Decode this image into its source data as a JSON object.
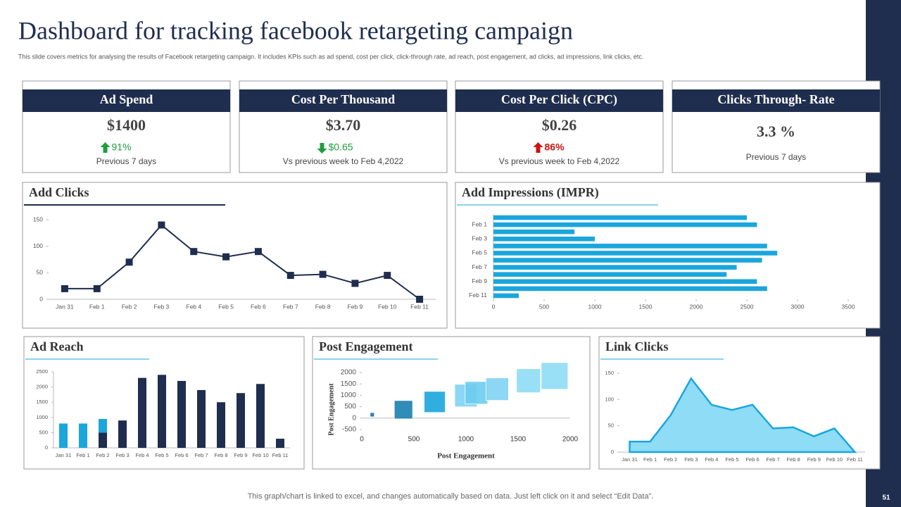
{
  "title": "Dashboard for tracking facebook retargeting campaign",
  "subtitle": "This slide covers metrics for analysing the results of Facebook retargeting campaign. It includes KPIs such as ad spend, cost per click, click-through rate, ad reach, post engagement, ad clicks, ad impressions, link clicks, etc.",
  "kpis": [
    {
      "label": "Ad Spend",
      "value": "$1400",
      "change": "91%",
      "trend": "up",
      "change_color": "#1e9e3e",
      "note": "Previous  7 days"
    },
    {
      "label": "Cost Per Thousand",
      "value": "$3.70",
      "change": "$0.65",
      "trend": "down",
      "change_color": "#1e9e3e",
      "note": "Vs previous  week to Feb 4,2022"
    },
    {
      "label": "Cost Per Click (CPC)",
      "value": "$0.26",
      "change": "86%",
      "trend": "up",
      "change_color": "#d01010",
      "note": "Vs previous  week to Feb 4,2022"
    },
    {
      "label": "Clicks Through- Rate",
      "value": "3.3 %",
      "note": "Previous 7 days"
    }
  ],
  "chart_data": [
    {
      "type": "line",
      "title": "Add Clicks",
      "categories": [
        "Jan 31",
        "Feb 1",
        "Feb 2",
        "Feb 3",
        "Feb 4",
        "Feb 5",
        "Feb 6",
        "Feb 7",
        "Feb 8",
        "Feb 9",
        "Feb 10",
        "Feb 11"
      ],
      "values": [
        20,
        20,
        70,
        140,
        90,
        80,
        90,
        45,
        47,
        30,
        45,
        0
      ],
      "color": "#1f2d4e",
      "ylim": [
        0,
        150
      ],
      "yticks": [
        0,
        50,
        100,
        150
      ]
    },
    {
      "type": "hbar",
      "title": "Add Impressions (IMPR)",
      "categories": [
        null,
        "Feb 1",
        null,
        "Feb 3",
        null,
        "Feb 5",
        null,
        "Feb 7",
        null,
        "Feb 9",
        null,
        "Feb 11"
      ],
      "values": [
        2500,
        2600,
        800,
        1000,
        2700,
        2800,
        2650,
        2400,
        2300,
        2600,
        2700,
        250
      ],
      "color": "#1aa6dc",
      "xlim": [
        0,
        3500
      ],
      "xticks": [
        0,
        500,
        1000,
        1500,
        2000,
        2500,
        3000,
        3500
      ]
    },
    {
      "type": "stacked_bar",
      "title": "Ad Reach",
      "categories": [
        "Jan 31",
        "Feb 1",
        "Feb 2",
        "Feb 3",
        "Feb 4",
        "Feb 5",
        "Feb 6",
        "Feb 7",
        "Feb 8",
        "Feb 9",
        "Feb 10",
        "Feb 11"
      ],
      "series": [
        {
          "color": "#1f2d4e",
          "values": [
            0,
            0,
            500,
            900,
            2300,
            2400,
            2200,
            1900,
            1500,
            1800,
            2100,
            300
          ]
        },
        {
          "color": "#1aa6dc",
          "values": [
            800,
            800,
            450,
            0,
            0,
            0,
            0,
            0,
            0,
            0,
            0,
            0
          ]
        }
      ],
      "ylim": [
        0,
        2500
      ],
      "yticks": [
        0,
        500,
        1000,
        1500,
        2000,
        2500
      ]
    },
    {
      "type": "bubble",
      "title": "Post Engagement",
      "xlabel": "Post Engagement",
      "ylabel": "Post Engagement",
      "x": [
        100,
        400,
        700,
        1000,
        1100,
        1300,
        1600,
        1850
      ],
      "values": [
        150,
        370,
        710,
        990,
        1110,
        1270,
        1640,
        1850
      ],
      "sizes": [
        6,
        26,
        30,
        32,
        32,
        32,
        34,
        38
      ],
      "colors": [
        "#1f6f9a",
        "#1a7fb0",
        "#1aa6dc",
        "#7fd3f2",
        "#6ccdf0",
        "#7fd3f2",
        "#8edcf5",
        "#8edcf5"
      ],
      "xlim": [
        0,
        2000
      ],
      "xticks": [
        0,
        500,
        1000,
        1500,
        2000
      ],
      "ylim": [
        -500,
        2000
      ],
      "yticks": [
        -500,
        0,
        500,
        1000,
        1500,
        2000
      ]
    },
    {
      "type": "area",
      "title": "Link Clicks",
      "categories": [
        "Jan 31",
        "Feb 1",
        "Feb 2",
        "Feb 3",
        "Feb 4",
        "Feb 5",
        "Feb 6",
        "Feb 7",
        "Feb 8",
        "Feb 9",
        "Feb 10",
        "Feb 11"
      ],
      "values": [
        20,
        20,
        70,
        140,
        90,
        80,
        90,
        45,
        47,
        30,
        45,
        0
      ],
      "color": "#1aa6dc",
      "fill": "#8edcf5",
      "ylim": [
        0,
        150
      ],
      "yticks": [
        0,
        50,
        100,
        150
      ]
    }
  ],
  "footer": "This graph/chart is linked to excel,  and changes automatically based on data. Just left click on it and select “Edit Data”.",
  "page_number": "51"
}
